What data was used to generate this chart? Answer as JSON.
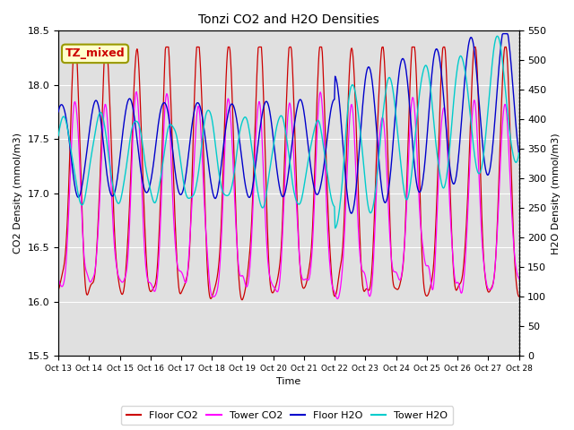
{
  "title": "Tonzi CO2 and H2O Densities",
  "xlabel": "Time",
  "ylabel_left": "CO2 Density (mmol/m3)",
  "ylabel_right": "H2O Density (mmol/m3)",
  "ylim_left": [
    15.5,
    18.5
  ],
  "ylim_right": [
    0,
    550
  ],
  "xtick_labels": [
    "Oct 13",
    "Oct 14",
    "Oct 15",
    "Oct 16",
    "Oct 17",
    "Oct 18",
    "Oct 19",
    "Oct 20",
    "Oct 21",
    "Oct 22",
    "Oct 23",
    "Oct 24",
    "Oct 25",
    "Oct 26",
    "Oct 27",
    "Oct 28"
  ],
  "annotation_text": "TZ_mixed",
  "annotation_bg": "#FFFFCC",
  "annotation_edge": "#999900",
  "annotation_color": "#CC0000",
  "colors": {
    "floor_co2": "#CC0000",
    "tower_co2": "#FF00FF",
    "floor_h2o": "#0000CC",
    "tower_h2o": "#00CCCC"
  },
  "legend_labels": [
    "Floor CO2",
    "Tower CO2",
    "Floor H2O",
    "Tower H2O"
  ],
  "bg_color": "#E0E0E0",
  "fig_color": "#FFFFFF",
  "grid_color": "#FFFFFF",
  "n_points": 720,
  "n_days": 15
}
